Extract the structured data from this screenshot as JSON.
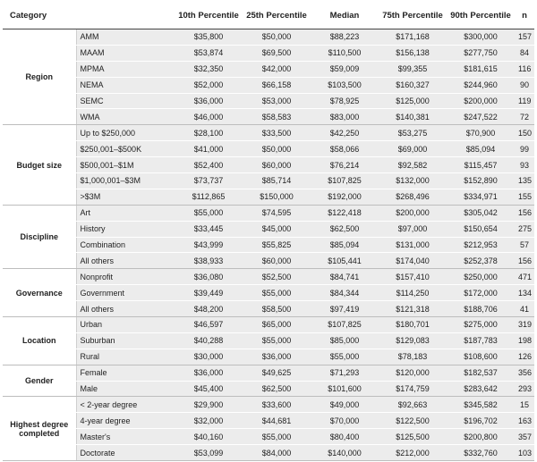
{
  "headers": [
    "Category",
    "10th Percentile",
    "25th Percentile",
    "Median",
    "75th Percentile",
    "90th Percentile",
    "n"
  ],
  "groups": [
    {
      "name": "Region",
      "rows": [
        [
          "AMM",
          "$35,800",
          "$50,000",
          "$88,223",
          "$171,168",
          "$300,000",
          "157"
        ],
        [
          "MAAM",
          "$53,874",
          "$69,500",
          "$110,500",
          "$156,138",
          "$277,750",
          "84"
        ],
        [
          "MPMA",
          "$32,350",
          "$42,000",
          "$59,009",
          "$99,355",
          "$181,615",
          "116"
        ],
        [
          "NEMA",
          "$52,000",
          "$66,158",
          "$103,500",
          "$160,327",
          "$244,960",
          "90"
        ],
        [
          "SEMC",
          "$36,000",
          "$53,000",
          "$78,925",
          "$125,000",
          "$200,000",
          "119"
        ],
        [
          "WMA",
          "$46,000",
          "$58,583",
          "$83,000",
          "$140,381",
          "$247,522",
          "72"
        ]
      ]
    },
    {
      "name": "Budget size",
      "rows": [
        [
          "Up to $250,000",
          "$28,100",
          "$33,500",
          "$42,250",
          "$53,275",
          "$70,900",
          "150"
        ],
        [
          "$250,001–$500K",
          "$41,000",
          "$50,000",
          "$58,066",
          "$69,000",
          "$85,094",
          "99"
        ],
        [
          "$500,001–$1M",
          "$52,400",
          "$60,000",
          "$76,214",
          "$92,582",
          "$115,457",
          "93"
        ],
        [
          "$1,000,001–$3M",
          "$73,737",
          "$85,714",
          "$107,825",
          "$132,000",
          "$152,890",
          "135"
        ],
        [
          ">$3M",
          "$112,865",
          "$150,000",
          "$192,000",
          "$268,496",
          "$334,971",
          "155"
        ]
      ]
    },
    {
      "name": "Discipline",
      "rows": [
        [
          "Art",
          "$55,000",
          "$74,595",
          "$122,418",
          "$200,000",
          "$305,042",
          "156"
        ],
        [
          "History",
          "$33,445",
          "$45,000",
          "$62,500",
          "$97,000",
          "$150,654",
          "275"
        ],
        [
          "Combination",
          "$43,999",
          "$55,825",
          "$85,094",
          "$131,000",
          "$212,953",
          "57"
        ],
        [
          "All others",
          "$38,933",
          "$60,000",
          "$105,441",
          "$174,040",
          "$252,378",
          "156"
        ]
      ]
    },
    {
      "name": "Governance",
      "rows": [
        [
          "Nonprofit",
          "$36,080",
          "$52,500",
          "$84,741",
          "$157,410",
          "$250,000",
          "471"
        ],
        [
          "Government",
          "$39,449",
          "$55,000",
          "$84,344",
          "$114,250",
          "$172,000",
          "134"
        ],
        [
          "All others",
          "$48,200",
          "$58,500",
          "$97,419",
          "$121,318",
          "$188,706",
          "41"
        ]
      ]
    },
    {
      "name": "Location",
      "rows": [
        [
          "Urban",
          "$46,597",
          "$65,000",
          "$107,825",
          "$180,701",
          "$275,000",
          "319"
        ],
        [
          "Suburban",
          "$40,288",
          "$55,000",
          "$85,000",
          "$129,083",
          "$187,783",
          "198"
        ],
        [
          "Rural",
          "$30,000",
          "$36,000",
          "$55,000",
          "$78,183",
          "$108,600",
          "126"
        ]
      ]
    },
    {
      "name": "Gender",
      "rows": [
        [
          "Female",
          "$36,000",
          "$49,625",
          "$71,293",
          "$120,000",
          "$182,537",
          "356"
        ],
        [
          "Male",
          "$45,400",
          "$62,500",
          "$101,600",
          "$174,759",
          "$283,642",
          "293"
        ]
      ]
    },
    {
      "name": "Highest degree completed",
      "rows": [
        [
          "< 2-year degree",
          "$29,900",
          "$33,600",
          "$49,000",
          "$92,663",
          "$345,582",
          "15"
        ],
        [
          "4-year degree",
          "$32,000",
          "$44,681",
          "$70,000",
          "$122,500",
          "$196,702",
          "163"
        ],
        [
          "Master's",
          "$40,160",
          "$55,000",
          "$80,400",
          "$125,500",
          "$200,800",
          "357"
        ],
        [
          "Doctorate",
          "$53,099",
          "$84,000",
          "$140,000",
          "$212,000",
          "$332,760",
          "103"
        ]
      ]
    }
  ]
}
